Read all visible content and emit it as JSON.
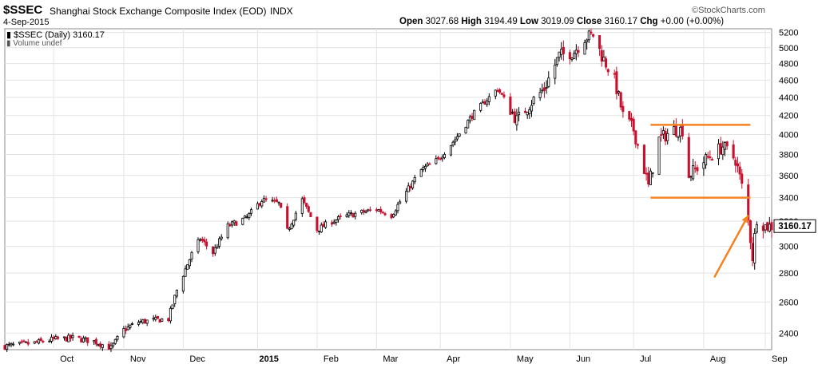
{
  "header": {
    "symbol": "$SSEC",
    "name": "Shanghai Stock Exchange Composite Index (EOD)",
    "exchange": "INDX",
    "date": "4-Sep-2015",
    "copyright": "©StockCharts.com",
    "open_label": "Open",
    "open": "3027.68",
    "high_label": "High",
    "high": "3194.49",
    "low_label": "Low",
    "low": "3019.09",
    "close_label": "Close",
    "close": "3160.17",
    "chg_label": "Chg",
    "chg": "+0.00 (+0.00%)",
    "legend_price": "$SSEC (Daily) 3160.17",
    "legend_volume": "Volume undef"
  },
  "colors": {
    "up": "#000000",
    "down": "#c8102e",
    "annotation": "#f58220",
    "grid": "#e3e3e3",
    "last_price_box": "#ffffff"
  },
  "chart_data": {
    "type": "candlestick",
    "y_scale": "log",
    "ylim": [
      2300,
      5250
    ],
    "yticks": [
      2400,
      2600,
      2800,
      3000,
      3200,
      3400,
      3600,
      3800,
      4000,
      4200,
      4400,
      4600,
      4800,
      5000,
      5200
    ],
    "x_labels": [
      "Oct",
      "Nov",
      "Dec",
      "2015",
      "Feb",
      "Mar",
      "Apr",
      "May",
      "Jun",
      "Jul",
      "Aug",
      "Sep"
    ],
    "last_price_label": "3160.17",
    "grid": true,
    "series_close": [
      {
        "date": "2014-09-08",
        "close": 2320
      },
      {
        "date": "2014-09-22",
        "close": 2340
      },
      {
        "date": "2014-09-30",
        "close": 2360
      },
      {
        "date": "2014-10-10",
        "close": 2370
      },
      {
        "date": "2014-10-20",
        "close": 2350
      },
      {
        "date": "2014-10-28",
        "close": 2310
      },
      {
        "date": "2014-11-03",
        "close": 2420
      },
      {
        "date": "2014-11-10",
        "close": 2470
      },
      {
        "date": "2014-11-17",
        "close": 2480
      },
      {
        "date": "2014-11-24",
        "close": 2490
      },
      {
        "date": "2014-11-28",
        "close": 2680
      },
      {
        "date": "2014-12-05",
        "close": 2940
      },
      {
        "date": "2014-12-09",
        "close": 3060
      },
      {
        "date": "2014-12-15",
        "close": 2950
      },
      {
        "date": "2014-12-22",
        "close": 3160
      },
      {
        "date": "2014-12-31",
        "close": 3230
      },
      {
        "date": "2015-01-07",
        "close": 3380
      },
      {
        "date": "2015-01-15",
        "close": 3350
      },
      {
        "date": "2015-01-19",
        "close": 3120
      },
      {
        "date": "2015-01-26",
        "close": 3380
      },
      {
        "date": "2015-02-02",
        "close": 3130
      },
      {
        "date": "2015-02-09",
        "close": 3200
      },
      {
        "date": "2015-02-17",
        "close": 3250
      },
      {
        "date": "2015-03-02",
        "close": 3300
      },
      {
        "date": "2015-03-09",
        "close": 3250
      },
      {
        "date": "2015-03-16",
        "close": 3450
      },
      {
        "date": "2015-03-23",
        "close": 3650
      },
      {
        "date": "2015-03-31",
        "close": 3750
      },
      {
        "date": "2015-04-08",
        "close": 3950
      },
      {
        "date": "2015-04-16",
        "close": 4200
      },
      {
        "date": "2015-04-24",
        "close": 4400
      },
      {
        "date": "2015-04-28",
        "close": 4500
      },
      {
        "date": "2015-05-07",
        "close": 4150
      },
      {
        "date": "2015-05-14",
        "close": 4350
      },
      {
        "date": "2015-05-20",
        "close": 4500
      },
      {
        "date": "2015-05-27",
        "close": 4900
      },
      {
        "date": "2015-06-03",
        "close": 4950
      },
      {
        "date": "2015-06-08",
        "close": 5130
      },
      {
        "date": "2015-06-12",
        "close": 5170
      },
      {
        "date": "2015-06-16",
        "close": 4900
      },
      {
        "date": "2015-06-22",
        "close": 4600
      },
      {
        "date": "2015-06-26",
        "close": 4200
      },
      {
        "date": "2015-07-01",
        "close": 4050
      },
      {
        "date": "2015-07-08",
        "close": 3500
      },
      {
        "date": "2015-07-13",
        "close": 3950
      },
      {
        "date": "2015-07-20",
        "close": 4050
      },
      {
        "date": "2015-07-24",
        "close": 4050
      },
      {
        "date": "2015-07-27",
        "close": 3600
      },
      {
        "date": "2015-08-04",
        "close": 3750
      },
      {
        "date": "2015-08-12",
        "close": 3880
      },
      {
        "date": "2015-08-18",
        "close": 3750
      },
      {
        "date": "2015-08-21",
        "close": 3500
      },
      {
        "date": "2015-08-24",
        "close": 3200
      },
      {
        "date": "2015-08-26",
        "close": 2920
      },
      {
        "date": "2015-08-28",
        "close": 3230
      },
      {
        "date": "2015-09-01",
        "close": 3160
      },
      {
        "date": "2015-09-04",
        "close": 3160
      }
    ],
    "annotations": [
      {
        "type": "hline",
        "value": 4100,
        "from": "2015-07-09",
        "to": "2015-08-25",
        "color": "orange"
      },
      {
        "type": "hline",
        "value": 3400,
        "from": "2015-07-09",
        "to": "2015-08-25",
        "color": "orange"
      },
      {
        "type": "arrow",
        "from": {
          "date": "2015-08-08",
          "value": 2770
        },
        "to": {
          "date": "2015-08-24",
          "value": 3250
        },
        "color": "orange"
      }
    ]
  }
}
